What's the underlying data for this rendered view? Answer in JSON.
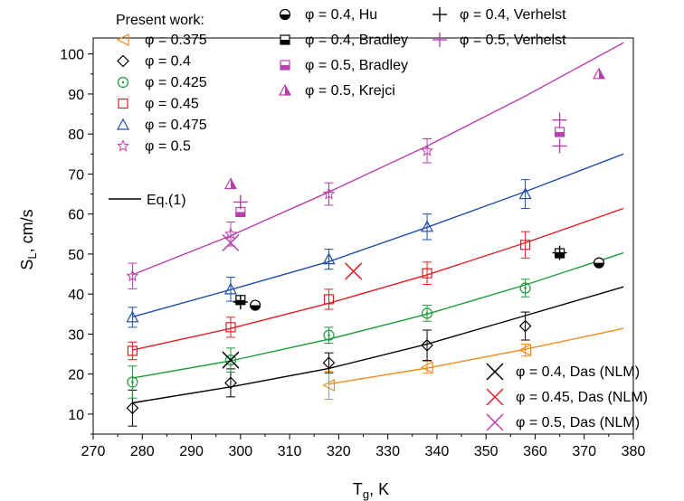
{
  "chart_data": {
    "type": "scatter",
    "xlabel": "T",
    "xlabel_sub": "g",
    "xlabel_suffix": ", K",
    "ylabel": "S",
    "ylabel_sub": "L",
    "ylabel_suffix": ", cm/s",
    "xlim": [
      270,
      380
    ],
    "ylim": [
      5,
      104
    ],
    "xticks": [
      "270",
      "280",
      "290",
      "300",
      "310",
      "320",
      "330",
      "340",
      "350",
      "360",
      "370",
      "380"
    ],
    "yticks": [
      "10",
      "20",
      "30",
      "40",
      "50",
      "60",
      "70",
      "80",
      "90",
      "100"
    ],
    "legend_header": "Present work:",
    "legend_phi": "φ",
    "eq_label": "Eq.(1)",
    "series": [
      {
        "phi": "0.375",
        "color": "#f08a1e",
        "marker": "tri-left",
        "points": [
          [
            318,
            17.2,
            3.5
          ],
          [
            338,
            21.7,
            1.5
          ],
          [
            358,
            26.0,
            1.5
          ]
        ],
        "curve": [
          [
            318,
            17.5
          ],
          [
            338,
            21.5
          ],
          [
            358,
            26.2
          ],
          [
            378,
            31.4
          ]
        ]
      },
      {
        "phi": "0.4",
        "color": "#000000",
        "marker": "diamond",
        "points": [
          [
            278,
            11.5,
            4.5
          ],
          [
            298,
            17.8,
            3.5
          ],
          [
            318,
            22.8,
            2.5
          ],
          [
            338,
            27.2,
            3.8
          ],
          [
            358,
            32.0,
            3.5
          ]
        ],
        "curve": [
          [
            278,
            12.8
          ],
          [
            298,
            16.8
          ],
          [
            318,
            21.4
          ],
          [
            338,
            27.5
          ],
          [
            358,
            34.6
          ],
          [
            378,
            41.8
          ]
        ]
      },
      {
        "phi": "0.425",
        "color": "#1e9a3a",
        "marker": "circle-dot",
        "points": [
          [
            278,
            18.0,
            4.0
          ],
          [
            298,
            23.5,
            3.0
          ],
          [
            318,
            29.7,
            2.0
          ],
          [
            338,
            35.2,
            2.0
          ],
          [
            358,
            41.5,
            2.2
          ]
        ],
        "curve": [
          [
            278,
            19.0
          ],
          [
            298,
            23.3
          ],
          [
            318,
            28.7
          ],
          [
            338,
            35.0
          ],
          [
            358,
            42.3
          ],
          [
            378,
            50.3
          ]
        ]
      },
      {
        "phi": "0.45",
        "color": "#e01e24",
        "marker": "square",
        "points": [
          [
            278,
            25.8,
            2.2
          ],
          [
            298,
            31.7,
            2.5
          ],
          [
            318,
            38.7,
            2.5
          ],
          [
            338,
            45.2,
            2.8
          ],
          [
            358,
            52.3,
            3.3
          ]
        ],
        "curve": [
          [
            278,
            26.0
          ],
          [
            298,
            31.4
          ],
          [
            318,
            37.7
          ],
          [
            338,
            44.8
          ],
          [
            358,
            52.8
          ],
          [
            378,
            61.4
          ]
        ]
      },
      {
        "phi": "0.475",
        "color": "#1f4ea8",
        "marker": "triangle",
        "points": [
          [
            278,
            34.2,
            2.5
          ],
          [
            298,
            41.2,
            3.0
          ],
          [
            318,
            48.7,
            2.5
          ],
          [
            338,
            56.8,
            3.2
          ],
          [
            358,
            65.0,
            3.6
          ]
        ],
        "curve": [
          [
            278,
            34.3
          ],
          [
            298,
            41.1
          ],
          [
            318,
            48.1
          ],
          [
            338,
            56.7
          ],
          [
            358,
            65.6
          ],
          [
            378,
            75.0
          ]
        ]
      },
      {
        "phi": "0.5",
        "color": "#b83fae",
        "marker": "star",
        "points": [
          [
            278,
            44.5,
            3.2
          ],
          [
            298,
            55.0,
            3.0
          ],
          [
            318,
            65.0,
            2.8
          ],
          [
            338,
            75.8,
            3.0
          ]
        ],
        "curve": [
          [
            278,
            44.8
          ],
          [
            298,
            54.6
          ],
          [
            318,
            65.5
          ],
          [
            338,
            77.0
          ],
          [
            358,
            89.5
          ],
          [
            378,
            102.8
          ]
        ]
      }
    ],
    "literature": [
      {
        "label": "φ = 0.4, Hu",
        "color": "#000000",
        "marker": "half-circle",
        "points": [
          [
            303,
            37.2
          ],
          [
            373,
            47.8
          ]
        ]
      },
      {
        "label": "φ = 0.4, Bradley",
        "color": "#000000",
        "marker": "half-square",
        "points": [
          [
            300,
            38.5
          ],
          [
            365,
            50.2
          ]
        ]
      },
      {
        "label": "φ = 0.5, Bradley",
        "color": "#b83fae",
        "marker": "half-square",
        "points": [
          [
            300,
            60.5
          ],
          [
            365,
            80.5
          ]
        ]
      },
      {
        "label": "φ = 0.5, Krejci",
        "color": "#b83fae",
        "marker": "half-triangle",
        "points": [
          [
            298,
            67.5
          ],
          [
            373,
            95.0
          ]
        ]
      },
      {
        "label": "φ = 0.4, Verhelst",
        "color": "#000000",
        "marker": "plus",
        "points": [
          [
            300,
            38.0
          ],
          [
            365,
            50.3
          ]
        ]
      },
      {
        "label": "φ = 0.5, Verhelst",
        "color": "#b83fae",
        "marker": "plus",
        "points": [
          [
            300,
            63.0
          ],
          [
            365,
            83.5
          ],
          [
            365,
            77.0
          ]
        ]
      }
    ],
    "das": [
      {
        "label": "φ = 0.4, Das (NLM)",
        "color": "#000000",
        "points": [
          [
            298,
            23.5
          ]
        ]
      },
      {
        "label": "φ = 0.45, Das (NLM)",
        "color": "#e01e24",
        "points": [
          [
            323,
            45.7
          ]
        ]
      },
      {
        "label": "φ = 0.5, Das (NLM)",
        "color": "#b83fae",
        "points": [
          [
            298,
            52.8
          ]
        ]
      }
    ]
  }
}
